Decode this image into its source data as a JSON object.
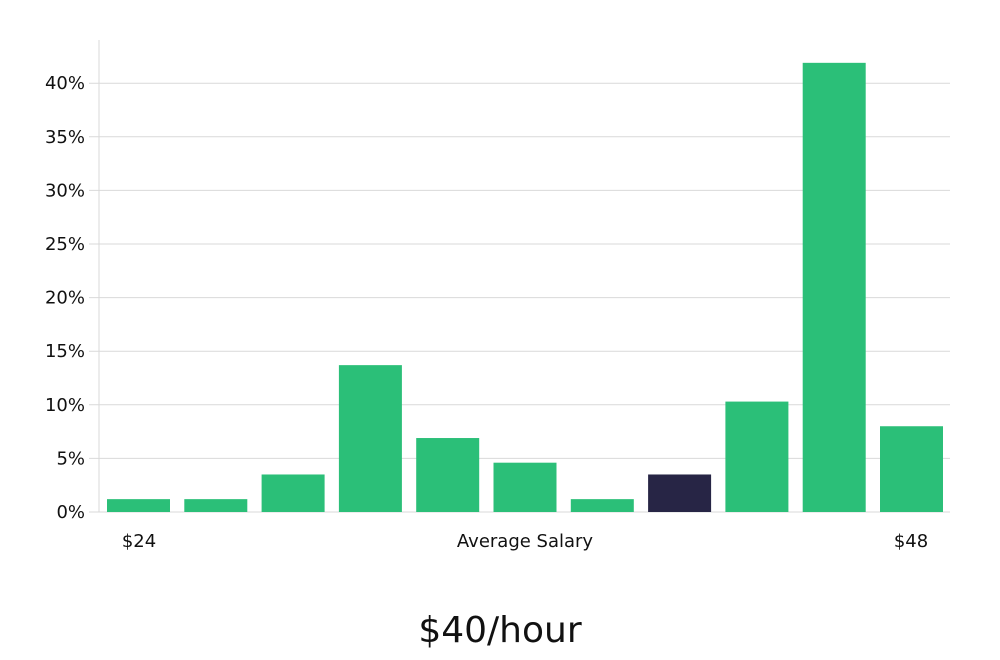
{
  "headline": "$40/hour",
  "colors": {
    "bar": "#2bbf78",
    "highlight": "#272545",
    "grid": "#d9d9d9",
    "text": "#111111"
  },
  "chart_data": {
    "type": "bar",
    "title": "",
    "xlabel": "Average Salary",
    "ylabel": "",
    "x_start_label": "$24",
    "x_end_label": "$48",
    "ylim": [
      0,
      44
    ],
    "yticks": [
      0,
      5,
      10,
      15,
      20,
      25,
      30,
      35,
      40
    ],
    "ytick_labels": [
      "0%",
      "5%",
      "10%",
      "15%",
      "20%",
      "25%",
      "30%",
      "35%",
      "40%"
    ],
    "grid": true,
    "values": [
      1.2,
      1.2,
      3.5,
      13.7,
      6.9,
      4.6,
      1.2,
      3.5,
      10.3,
      41.9,
      8.0
    ],
    "highlight_index": 7
  }
}
